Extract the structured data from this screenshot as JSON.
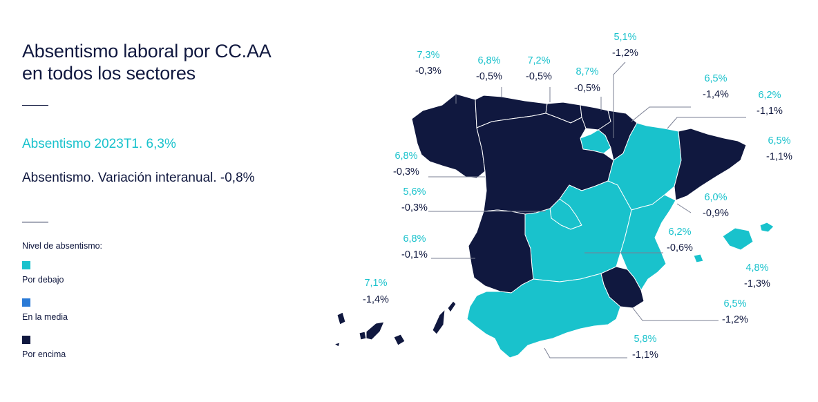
{
  "title": {
    "line1": "Absentismo laboral por CC.AA",
    "line2": "en todos los sectores"
  },
  "summary": {
    "absentismo": "Absentismo 2023T1. 6,3%",
    "variacion": "Absentismo. Variación interanual. -0,8%"
  },
  "legend": {
    "title": "Nivel de absentismo:",
    "items": [
      {
        "label": "Por debajo",
        "color": "#19c2cc"
      },
      {
        "label": "En la media",
        "color": "#2a7ad6"
      },
      {
        "label": "Por encima",
        "color": "#10183f"
      }
    ]
  },
  "colors": {
    "below": "#19c2cc",
    "average": "#2a7ad6",
    "above": "#10183f"
  },
  "regions": [
    {
      "id": "galicia",
      "pct": "7,3%",
      "var": "-0,3%",
      "level": "above"
    },
    {
      "id": "asturias",
      "pct": "6,8%",
      "var": "-0,5%",
      "level": "above"
    },
    {
      "id": "cantabria",
      "pct": "7,2%",
      "var": "-0,5%",
      "level": "above"
    },
    {
      "id": "pais-vasco",
      "pct": "8,7%",
      "var": "-0,5%",
      "level": "above"
    },
    {
      "id": "navarra",
      "pct": "5,1%",
      "var": "-1,2%",
      "level": "above"
    },
    {
      "id": "la-rioja",
      "pct": "6,5%",
      "var": "-1,4%",
      "level": "below"
    },
    {
      "id": "aragon",
      "pct": "6,2%",
      "var": "-1,1%",
      "level": "below"
    },
    {
      "id": "cataluna",
      "pct": "6,5%",
      "var": "-1,1%",
      "level": "above"
    },
    {
      "id": "castilla-leon",
      "pct": "6,8%",
      "var": "-0,3%",
      "level": "above"
    },
    {
      "id": "madrid",
      "pct": "5,6%",
      "var": "-0,3%",
      "level": "below"
    },
    {
      "id": "comunidad-valenciana",
      "pct": "6,0%",
      "var": "-0,9%",
      "level": "below"
    },
    {
      "id": "castilla-la-mancha",
      "pct": "6,2%",
      "var": "-0,6%",
      "level": "below"
    },
    {
      "id": "extremadura",
      "pct": "6,8%",
      "var": "-0,1%",
      "level": "above"
    },
    {
      "id": "baleares",
      "pct": "4,8%",
      "var": "-1,3%",
      "level": "below"
    },
    {
      "id": "canarias",
      "pct": "7,1%",
      "var": "-1,4%",
      "level": "above"
    },
    {
      "id": "murcia",
      "pct": "6,5%",
      "var": "-1,2%",
      "level": "above"
    },
    {
      "id": "andalucia",
      "pct": "5,8%",
      "var": "-1,1%",
      "level": "below"
    }
  ]
}
